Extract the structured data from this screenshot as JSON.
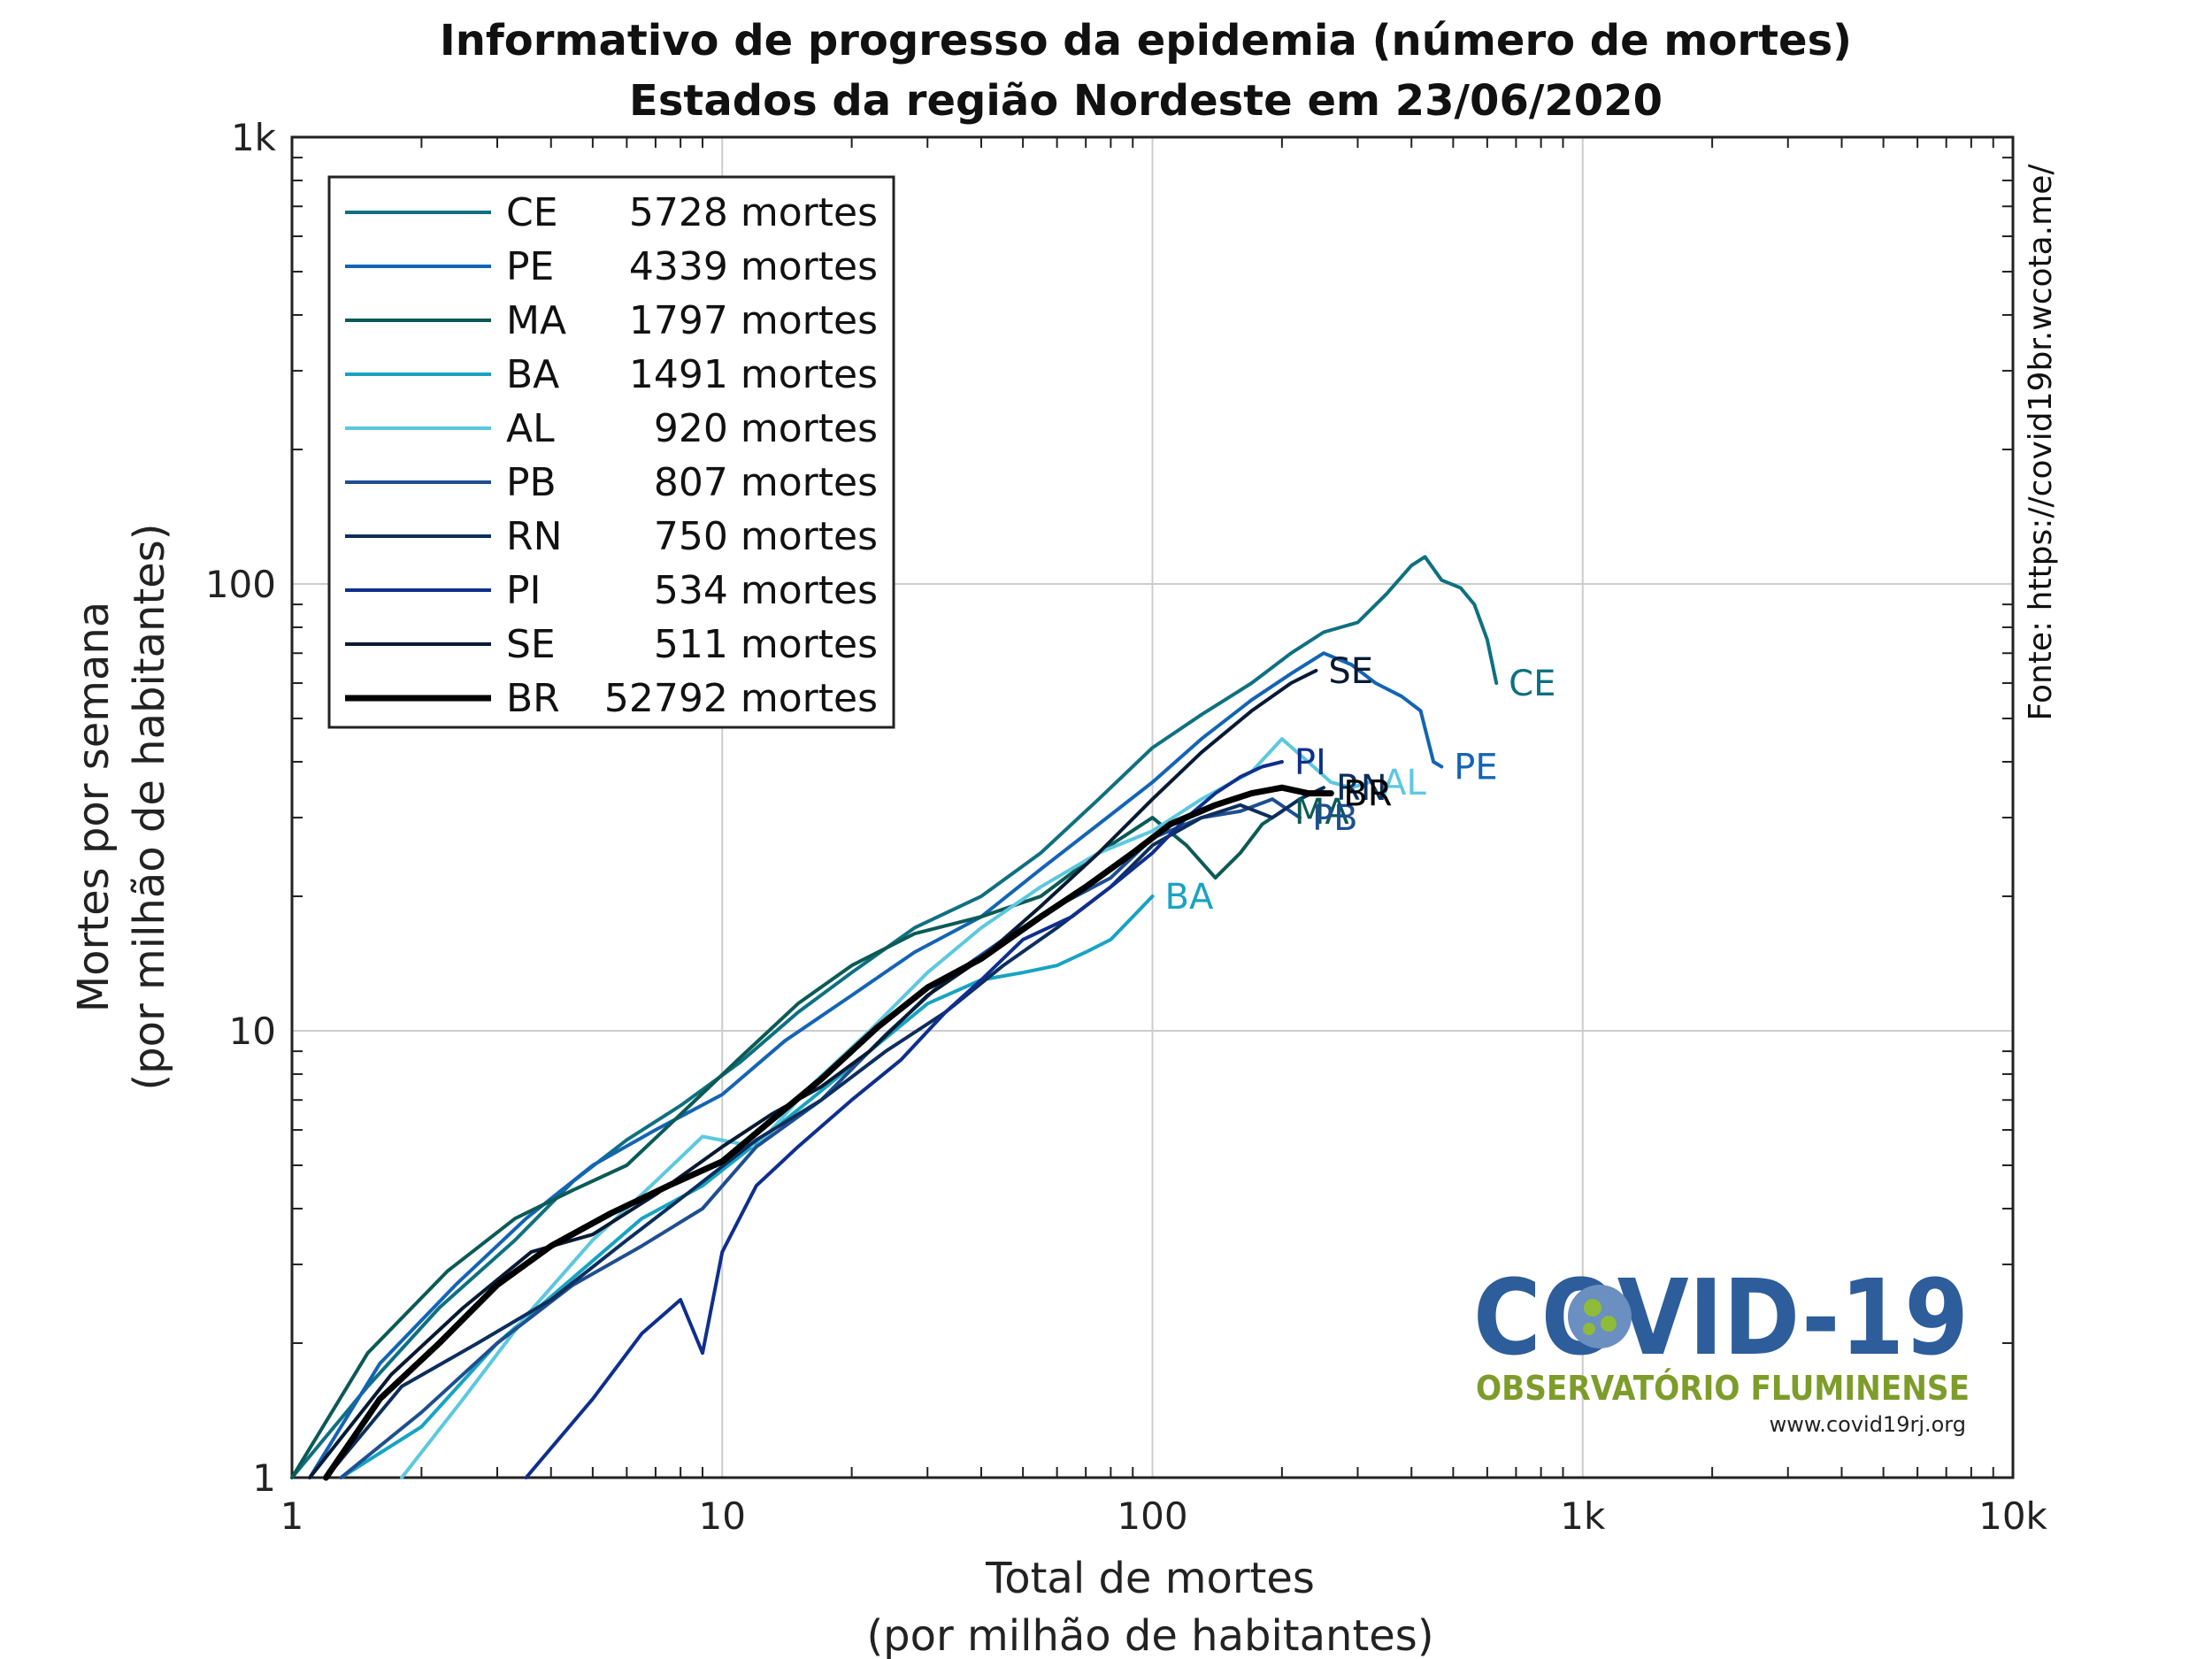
{
  "chart_data": {
    "type": "line",
    "title": "Informativo de progresso da epidemia (número de mortes)",
    "subtitle": "Estados da região Nordeste em 23/06/2020",
    "xlabel": [
      "Total de mortes",
      "(por milhão de habitantes)"
    ],
    "ylabel": [
      "Mortes por semana",
      "(por milhão de habitantes)"
    ],
    "xscale": "log",
    "yscale": "log",
    "xlim": [
      1,
      10000
    ],
    "ylim": [
      1,
      1000
    ],
    "xticks": [
      {
        "v": 1,
        "label": "1"
      },
      {
        "v": 10,
        "label": "10"
      },
      {
        "v": 100,
        "label": "100"
      },
      {
        "v": 1000,
        "label": "1k"
      },
      {
        "v": 10000,
        "label": "10k"
      }
    ],
    "yticks": [
      {
        "v": 1,
        "label": "1"
      },
      {
        "v": 10,
        "label": "10"
      },
      {
        "v": 100,
        "label": "100"
      },
      {
        "v": 1000,
        "label": "1k"
      }
    ],
    "grid": true,
    "legend_position": "top-left",
    "source": "Fonte: https://covid19br.wcota.me/",
    "logo": {
      "main": "COVID-19",
      "sub": "OBSERVATÓRIO FLUMINENSE",
      "url": "www.covid19rj.org"
    },
    "series": [
      {
        "name": "CE",
        "deaths": "5728 mortes",
        "color": "#0e7080",
        "width": 4,
        "end_label": "CE",
        "x": [
          1,
          1.5,
          2.2,
          3.3,
          4.5,
          6,
          8,
          11,
          15,
          20,
          28,
          40,
          55,
          75,
          100,
          130,
          170,
          210,
          250,
          300,
          350,
          400,
          430,
          470,
          520,
          560,
          600,
          630
        ],
        "y": [
          1,
          1.6,
          2.4,
          3.4,
          4.6,
          5.7,
          6.8,
          8.5,
          11,
          13.5,
          17,
          20,
          25,
          33,
          43,
          51,
          60,
          70,
          78,
          82,
          95,
          110,
          115,
          102,
          98,
          90,
          75,
          60
        ]
      },
      {
        "name": "PE",
        "deaths": "4339 mortes",
        "color": "#1464b4",
        "width": 4,
        "end_label": "PE",
        "x": [
          1.1,
          1.6,
          2.4,
          3.5,
          5,
          7,
          10,
          14,
          20,
          28,
          40,
          55,
          75,
          100,
          130,
          170,
          210,
          250,
          290,
          330,
          380,
          420,
          450,
          470
        ],
        "y": [
          1,
          1.8,
          2.7,
          3.8,
          5,
          6,
          7.2,
          9.5,
          12,
          15,
          18,
          23,
          29,
          36,
          45,
          55,
          63,
          70,
          66,
          60,
          56,
          52,
          40,
          39
        ]
      },
      {
        "name": "MA",
        "deaths": "1797 mortes",
        "color": "#0c5a55",
        "width": 4,
        "end_label": "MA",
        "x": [
          1,
          1.5,
          2.3,
          3.3,
          4.5,
          6,
          8,
          11,
          15,
          20,
          28,
          40,
          55,
          75,
          100,
          120,
          140,
          160,
          180,
          200
        ],
        "y": [
          1,
          1.9,
          2.9,
          3.8,
          4.4,
          5,
          6.5,
          8.7,
          11.5,
          14,
          16.5,
          18,
          20,
          25,
          30,
          26,
          22,
          25,
          29,
          31
        ]
      },
      {
        "name": "BA",
        "deaths": "1491 mortes",
        "color": "#17a3c2",
        "width": 4,
        "end_label": "BA",
        "x": [
          1.3,
          2,
          3,
          4.5,
          6.5,
          9,
          12,
          16,
          22,
          30,
          40,
          50,
          60,
          70,
          80,
          90,
          100
        ],
        "y": [
          1,
          1.3,
          2,
          2.8,
          3.8,
          4.5,
          5.6,
          7,
          9,
          11.5,
          13,
          13.5,
          14,
          15,
          16,
          18,
          20
        ]
      },
      {
        "name": "AL",
        "deaths": "920 mortes",
        "color": "#5cc8de",
        "width": 4,
        "end_label": "AL",
        "x": [
          1.8,
          2.5,
          3.5,
          5,
          7,
          9,
          12,
          16,
          22,
          30,
          40,
          55,
          75,
          100,
          130,
          170,
          200,
          230,
          260,
          290,
          320
        ],
        "y": [
          1,
          1.5,
          2.3,
          3.4,
          4.6,
          5.8,
          5.5,
          7.5,
          10,
          13.5,
          17,
          21,
          25,
          28,
          33,
          38,
          45,
          40,
          36,
          35,
          36
        ]
      },
      {
        "name": "PB",
        "deaths": "807 mortes",
        "color": "#1f4e90",
        "width": 4,
        "end_label": "PB",
        "x": [
          1.3,
          2,
          3,
          4.5,
          6.5,
          9,
          12,
          17,
          24,
          33,
          45,
          60,
          80,
          100,
          130,
          160,
          190,
          220
        ],
        "y": [
          1,
          1.4,
          2,
          2.7,
          3.3,
          4,
          5.5,
          7,
          9.8,
          13,
          16,
          19,
          22,
          27,
          30,
          31,
          33,
          30
        ]
      },
      {
        "name": "RN",
        "deaths": "750 mortes",
        "color": "#0d2e5c",
        "width": 4,
        "end_label": "RN",
        "x": [
          1.2,
          1.8,
          2.7,
          4,
          6,
          8.5,
          12,
          17,
          24,
          33,
          45,
          60,
          80,
          100,
          130,
          160,
          190,
          220,
          250
        ],
        "y": [
          1,
          1.6,
          2,
          2.5,
          3.4,
          4.4,
          5.7,
          7,
          9,
          11,
          14,
          17,
          21,
          26,
          30,
          32,
          30,
          33,
          35
        ]
      },
      {
        "name": "PI",
        "deaths": "534 mortes",
        "color": "#0f2f8c",
        "width": 4,
        "end_label": "PI",
        "x": [
          3.5,
          5,
          6.5,
          8,
          9,
          10,
          12,
          15,
          20,
          26,
          33,
          40,
          50,
          65,
          80,
          100,
          120,
          140,
          160,
          180,
          200
        ],
        "y": [
          1,
          1.5,
          2.1,
          2.5,
          1.9,
          3.2,
          4.5,
          5.5,
          7,
          8.6,
          11,
          13,
          16,
          18,
          21,
          25,
          30,
          34,
          37,
          39,
          40
        ]
      },
      {
        "name": "SE",
        "deaths": "511 mortes",
        "color": "#081a33",
        "width": 4,
        "end_label": "SE",
        "x": [
          1.1,
          1.7,
          2.5,
          3.6,
          5,
          7,
          10,
          13,
          17,
          22,
          30,
          40,
          55,
          75,
          100,
          130,
          170,
          210,
          240
        ],
        "y": [
          1,
          1.7,
          2.4,
          3.2,
          3.5,
          4.3,
          5.5,
          6.5,
          7.5,
          9,
          12,
          14.5,
          19,
          25,
          33,
          42,
          52,
          60,
          64
        ]
      },
      {
        "name": "BR",
        "deaths": "52792 mortes",
        "color": "#000000",
        "width": 7,
        "end_label": "BR",
        "x": [
          1.2,
          1.6,
          2.2,
          3,
          4,
          5.5,
          7.5,
          10,
          13,
          17,
          23,
          30,
          40,
          55,
          70,
          90,
          110,
          140,
          170,
          200,
          230,
          260
        ],
        "y": [
          1,
          1.5,
          2,
          2.7,
          3.3,
          3.9,
          4.5,
          5.1,
          6.3,
          7.8,
          10.2,
          12.5,
          14.5,
          18,
          21,
          25,
          29,
          32,
          34,
          35,
          34,
          34
        ]
      }
    ]
  }
}
